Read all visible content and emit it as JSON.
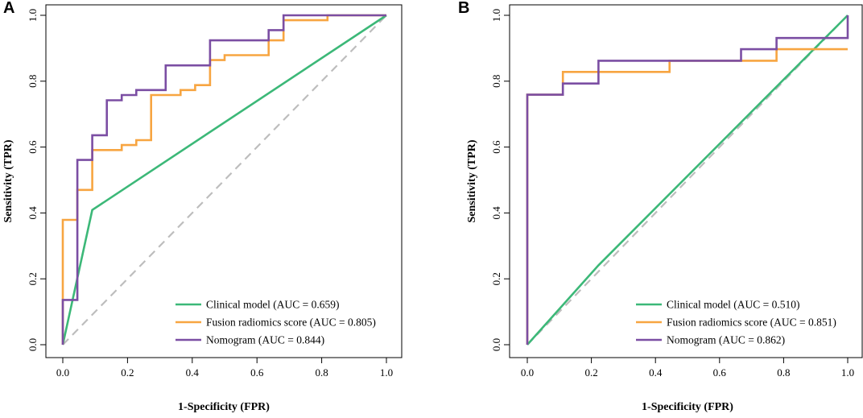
{
  "chart_data": [
    {
      "panel": "A",
      "type": "line",
      "title": "",
      "xlabel": "1-Specificity (FPR)",
      "ylabel": "Sensitivity (TPR)",
      "xlim": [
        0,
        1
      ],
      "ylim": [
        0,
        1
      ],
      "xticks": [
        "0.0",
        "0.2",
        "0.4",
        "0.6",
        "0.8",
        "1.0"
      ],
      "yticks": [
        "0.0",
        "0.2",
        "0.4",
        "0.6",
        "0.8",
        "1.0"
      ],
      "reference_line": {
        "x": [
          0,
          1
        ],
        "y": [
          0,
          1
        ],
        "color": "#bdbdbd",
        "style": "dashed"
      },
      "legend_position": "bottom-right",
      "series": [
        {
          "name": "Clinical model (AUC = 0.659)",
          "color": "#3cb878",
          "x": [
            0,
            0.091,
            1.0
          ],
          "y": [
            0,
            0.409,
            1.0
          ]
        },
        {
          "name": "Fusion radiomics score (AUC = 0.805)",
          "color": "#f7a541",
          "x": [
            0,
            0,
            0.045,
            0.045,
            0.091,
            0.091,
            0.182,
            0.182,
            0.227,
            0.227,
            0.273,
            0.273,
            0.364,
            0.364,
            0.409,
            0.409,
            0.455,
            0.455,
            0.5,
            0.5,
            0.636,
            0.636,
            0.682,
            0.682,
            0.818,
            0.818,
            1.0
          ],
          "y": [
            0,
            0.379,
            0.379,
            0.47,
            0.47,
            0.591,
            0.591,
            0.606,
            0.606,
            0.621,
            0.621,
            0.758,
            0.758,
            0.773,
            0.773,
            0.788,
            0.788,
            0.864,
            0.864,
            0.879,
            0.879,
            0.924,
            0.924,
            0.985,
            0.985,
            1.0,
            1.0
          ]
        },
        {
          "name": "Nomogram (AUC = 0.844)",
          "color": "#7b4ea3",
          "x": [
            0,
            0,
            0.045,
            0.045,
            0.091,
            0.091,
            0.136,
            0.136,
            0.182,
            0.182,
            0.227,
            0.227,
            0.318,
            0.318,
            0.455,
            0.455,
            0.636,
            0.636,
            0.682,
            0.682,
            1.0
          ],
          "y": [
            0,
            0.136,
            0.136,
            0.561,
            0.561,
            0.636,
            0.636,
            0.742,
            0.742,
            0.758,
            0.758,
            0.773,
            0.773,
            0.848,
            0.848,
            0.924,
            0.924,
            0.955,
            0.955,
            1.0,
            1.0
          ]
        }
      ]
    },
    {
      "panel": "B",
      "type": "line",
      "title": "",
      "xlabel": "1-Specificity (FPR)",
      "ylabel": "Sensitivity (TPR)",
      "xlim": [
        0,
        1
      ],
      "ylim": [
        0,
        1
      ],
      "xticks": [
        "0.0",
        "0.2",
        "0.4",
        "0.6",
        "0.8",
        "1.0"
      ],
      "yticks": [
        "0.0",
        "0.2",
        "0.4",
        "0.6",
        "0.8",
        "1.0"
      ],
      "reference_line": {
        "x": [
          0,
          1
        ],
        "y": [
          0,
          1
        ],
        "color": "#bdbdbd",
        "style": "dashed"
      },
      "legend_position": "bottom-right",
      "series": [
        {
          "name": "Clinical model (AUC = 0.510)",
          "color": "#3cb878",
          "x": [
            0,
            0.222,
            1.0
          ],
          "y": [
            0,
            0.241,
            1.0
          ]
        },
        {
          "name": "Fusion radiomics score (AUC = 0.851)",
          "color": "#f7a541",
          "x": [
            0,
            0,
            0.111,
            0.111,
            0.444,
            0.444,
            0.778,
            0.778,
            1.0
          ],
          "y": [
            0,
            0.759,
            0.759,
            0.828,
            0.828,
            0.862,
            0.862,
            0.897,
            0.897
          ]
        },
        {
          "name": "Nomogram (AUC = 0.862)",
          "color": "#7b4ea3",
          "x": [
            0,
            0,
            0.111,
            0.111,
            0.222,
            0.222,
            0.667,
            0.667,
            0.778,
            0.778,
            1.0,
            1.0
          ],
          "y": [
            0,
            0.759,
            0.759,
            0.793,
            0.793,
            0.862,
            0.862,
            0.897,
            0.897,
            0.931,
            0.931,
            1.0
          ]
        }
      ]
    }
  ]
}
